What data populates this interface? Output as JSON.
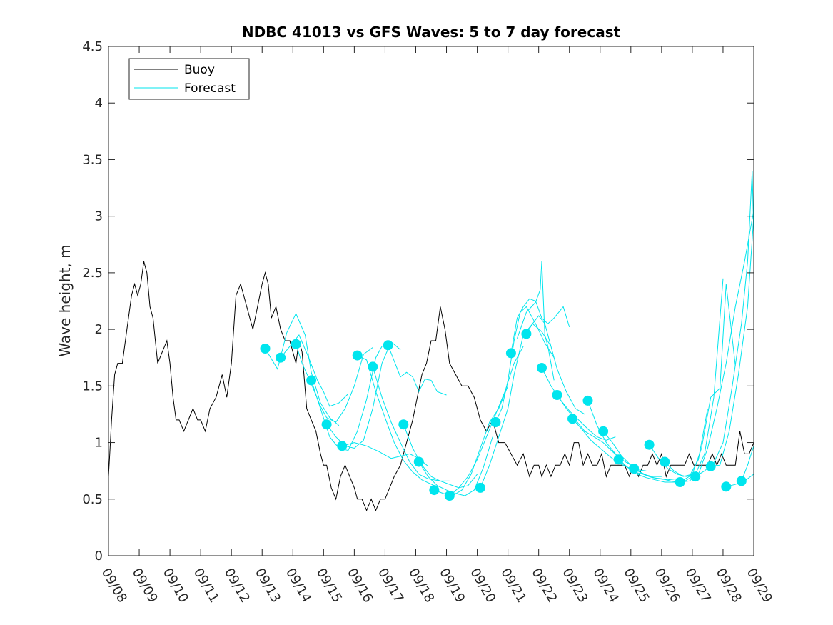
{
  "chart_data": {
    "type": "line",
    "title": "NDBC 41013 vs GFS Waves: 5 to 7 day forecast",
    "xlabel": "",
    "ylabel": "Wave height, m",
    "xlim": [
      0,
      21
    ],
    "ylim": [
      0,
      4.5
    ],
    "x_ticks": [
      "09/08",
      "09/09",
      "09/10",
      "09/11",
      "09/12",
      "09/13",
      "09/14",
      "09/15",
      "09/16",
      "09/17",
      "09/18",
      "09/19",
      "09/20",
      "09/21",
      "09/22",
      "09/23",
      "09/24",
      "09/25",
      "09/26",
      "09/27",
      "09/28",
      "09/29"
    ],
    "y_ticks": [
      0,
      0.5,
      1,
      1.5,
      2,
      2.5,
      3,
      3.5,
      4,
      4.5
    ],
    "y_tick_labels": [
      "0",
      "0.5",
      "1",
      "1.5",
      "2",
      "2.5",
      "3",
      "3.5",
      "4",
      "4.5"
    ],
    "legend": {
      "position": "top-left",
      "entries": [
        "Buoy",
        "Forecast"
      ]
    },
    "colors": {
      "buoy": "#000000",
      "forecast": "#00e5ee",
      "axes": "#262626"
    },
    "series": [
      {
        "name": "Buoy",
        "x": [
          0,
          0.05,
          0.1,
          0.2,
          0.3,
          0.45,
          0.6,
          0.75,
          0.85,
          0.95,
          1.05,
          1.15,
          1.25,
          1.35,
          1.45,
          1.6,
          1.75,
          1.9,
          2.0,
          2.1,
          2.2,
          2.3,
          2.45,
          2.6,
          2.75,
          2.9,
          3.0,
          3.15,
          3.3,
          3.5,
          3.7,
          3.85,
          4.0,
          4.15,
          4.3,
          4.5,
          4.7,
          4.85,
          5.0,
          5.1,
          5.2,
          5.3,
          5.45,
          5.6,
          5.75,
          5.9,
          6.0,
          6.1,
          6.2,
          6.3,
          6.45,
          6.6,
          6.75,
          6.9,
          7.0,
          7.1,
          7.25,
          7.4,
          7.55,
          7.7,
          7.85,
          8.0,
          8.1,
          8.25,
          8.4,
          8.55,
          8.7,
          8.85,
          9.0,
          9.15,
          9.3,
          9.5,
          9.7,
          9.9,
          10.05,
          10.2,
          10.35,
          10.5,
          10.65,
          10.8,
          10.95,
          11.1,
          11.3,
          11.5,
          11.7,
          11.9,
          12.1,
          12.3,
          12.5,
          12.7,
          12.9,
          13.1,
          13.3,
          13.5,
          13.7,
          13.85,
          14.0,
          14.1,
          14.25,
          14.4,
          14.55,
          14.7,
          14.85,
          15.0,
          15.15,
          15.3,
          15.45,
          15.6,
          15.75,
          15.9,
          16.05,
          16.2,
          16.35,
          16.5,
          16.65,
          16.8,
          16.95,
          17.1,
          17.25,
          17.4,
          17.55,
          17.7,
          17.85,
          18.0,
          18.15,
          18.3,
          18.45,
          18.6,
          18.75,
          18.9,
          19.05,
          19.2,
          19.35,
          19.5,
          19.65,
          19.8,
          19.95,
          20.1,
          20.25,
          20.4,
          20.55,
          20.7,
          20.85,
          21.0
        ],
        "y": [
          0.7,
          0.95,
          1.2,
          1.6,
          1.7,
          1.7,
          2.0,
          2.3,
          2.4,
          2.3,
          2.4,
          2.6,
          2.5,
          2.2,
          2.1,
          1.7,
          1.8,
          1.9,
          1.7,
          1.4,
          1.2,
          1.2,
          1.1,
          1.2,
          1.3,
          1.2,
          1.2,
          1.1,
          1.3,
          1.4,
          1.6,
          1.4,
          1.7,
          2.3,
          2.4,
          2.2,
          2.0,
          2.2,
          2.4,
          2.5,
          2.4,
          2.1,
          2.2,
          2.0,
          1.9,
          1.9,
          1.8,
          1.7,
          1.9,
          1.8,
          1.3,
          1.2,
          1.1,
          0.9,
          0.8,
          0.8,
          0.6,
          0.5,
          0.7,
          0.8,
          0.7,
          0.6,
          0.5,
          0.5,
          0.4,
          0.5,
          0.4,
          0.5,
          0.5,
          0.6,
          0.7,
          0.8,
          1.0,
          1.2,
          1.4,
          1.6,
          1.7,
          1.9,
          1.9,
          2.2,
          2.0,
          1.7,
          1.6,
          1.5,
          1.5,
          1.4,
          1.2,
          1.1,
          1.2,
          1.0,
          1.0,
          0.9,
          0.8,
          0.9,
          0.7,
          0.8,
          0.8,
          0.7,
          0.8,
          0.7,
          0.8,
          0.8,
          0.9,
          0.8,
          1.0,
          1.0,
          0.8,
          0.9,
          0.8,
          0.8,
          0.9,
          0.7,
          0.8,
          0.8,
          0.8,
          0.8,
          0.7,
          0.8,
          0.7,
          0.8,
          0.8,
          0.9,
          0.8,
          0.9,
          0.7,
          0.8,
          0.8,
          0.8,
          0.8,
          0.9,
          0.8,
          0.8,
          0.8,
          0.8,
          0.9,
          0.8,
          0.9,
          0.8,
          0.8,
          0.8,
          1.1,
          0.9,
          0.9,
          1.0
        ]
      }
    ],
    "forecast_segments": [
      {
        "x": [
          5.1,
          5.5,
          5.8,
          6.1,
          6.4,
          6.6,
          6.9,
          7.2,
          7.5
        ],
        "y": [
          1.83,
          1.65,
          1.97,
          2.14,
          1.95,
          1.62,
          1.35,
          1.22,
          1.15
        ]
      },
      {
        "x": [
          5.6,
          5.9,
          6.2,
          6.5,
          6.8,
          7.0,
          7.2,
          7.5,
          7.8
        ],
        "y": [
          1.75,
          1.85,
          1.95,
          1.76,
          1.55,
          1.45,
          1.32,
          1.35,
          1.43
        ]
      },
      {
        "x": [
          6.1,
          6.3,
          6.6,
          6.9,
          7.1,
          7.4,
          7.7,
          8.0,
          8.3,
          8.6
        ],
        "y": [
          1.87,
          1.7,
          1.52,
          1.32,
          1.22,
          1.18,
          1.3,
          1.5,
          1.78,
          1.84
        ]
      },
      {
        "x": [
          6.6,
          6.9,
          7.2,
          7.5,
          7.8,
          8.1,
          8.4,
          8.7,
          8.9
        ],
        "y": [
          1.55,
          1.3,
          1.05,
          0.95,
          0.93,
          1.1,
          1.38,
          1.75,
          1.85
        ]
      },
      {
        "x": [
          7.1,
          7.4,
          7.7,
          8.0,
          8.3,
          8.6,
          8.9,
          9.2,
          9.5
        ],
        "y": [
          1.16,
          1.05,
          0.97,
          0.95,
          1.02,
          1.3,
          1.7,
          1.89,
          1.82
        ]
      },
      {
        "x": [
          7.6,
          8.0,
          8.4,
          8.8,
          9.2,
          9.5,
          9.8,
          10.1,
          10.4
        ],
        "y": [
          0.97,
          1.0,
          0.97,
          0.92,
          0.86,
          0.88,
          0.9,
          0.86,
          0.79
        ]
      },
      {
        "x": [
          8.1,
          8.4,
          8.7,
          9.0,
          9.3,
          9.6,
          9.9,
          10.2,
          10.6
        ],
        "y": [
          1.77,
          1.73,
          1.45,
          1.22,
          1.0,
          0.84,
          0.74,
          0.67,
          0.62
        ]
      },
      {
        "x": [
          8.6,
          8.9,
          9.2,
          9.5,
          9.8,
          10.1,
          10.4,
          10.8,
          11.1
        ],
        "y": [
          1.67,
          1.4,
          1.18,
          1.0,
          0.83,
          0.72,
          0.68,
          0.66,
          0.66
        ]
      },
      {
        "x": [
          9.1,
          9.3,
          9.5,
          9.7,
          9.9,
          10.1,
          10.3,
          10.5,
          10.7,
          11.0
        ],
        "y": [
          1.86,
          1.72,
          1.58,
          1.62,
          1.58,
          1.45,
          1.56,
          1.55,
          1.45,
          1.42
        ]
      },
      {
        "x": [
          9.6,
          9.9,
          10.2,
          10.5,
          10.8,
          11.1,
          11.4,
          11.7,
          12.0
        ],
        "y": [
          1.16,
          0.95,
          0.8,
          0.7,
          0.66,
          0.63,
          0.6,
          0.62,
          0.72
        ]
      },
      {
        "x": [
          10.1,
          10.4,
          10.7,
          11.0,
          11.3,
          11.6,
          11.9,
          12.2,
          12.5
        ],
        "y": [
          0.83,
          0.7,
          0.62,
          0.58,
          0.55,
          0.53,
          0.58,
          0.78,
          1.05
        ]
      },
      {
        "x": [
          10.6,
          10.9,
          11.2,
          11.5,
          11.8,
          12.1,
          12.4,
          12.7,
          13.0
        ],
        "y": [
          0.58,
          0.55,
          0.53,
          0.58,
          0.72,
          0.95,
          1.18,
          1.3,
          1.5
        ]
      },
      {
        "x": [
          11.1,
          11.4,
          11.7,
          12.0,
          12.3,
          12.6,
          12.9,
          13.2,
          13.5
        ],
        "y": [
          0.53,
          0.6,
          0.7,
          0.85,
          1.05,
          1.25,
          1.45,
          1.7,
          1.85
        ]
      },
      {
        "x": [
          12.1,
          12.4,
          12.7,
          13.0,
          13.2,
          13.5,
          13.8,
          14.1,
          14.4
        ],
        "y": [
          0.6,
          0.8,
          1.05,
          1.3,
          1.6,
          1.95,
          2.05,
          1.98,
          1.85
        ]
      },
      {
        "x": [
          12.6,
          12.8,
          13.0,
          13.2,
          13.4,
          13.6,
          13.9,
          14.2,
          14.5
        ],
        "y": [
          1.18,
          1.3,
          1.55,
          1.9,
          2.15,
          2.2,
          2.05,
          1.88,
          1.75
        ]
      },
      {
        "x": [
          13.1,
          13.3,
          13.5,
          13.7,
          13.9,
          14.1,
          14.3,
          14.5,
          14.8,
          15.0
        ],
        "y": [
          1.79,
          2.1,
          2.2,
          2.27,
          2.25,
          2.1,
          2.05,
          2.1,
          2.2,
          2.02
        ]
      },
      {
        "x": [
          13.6,
          13.8,
          14.0,
          14.2,
          14.4,
          14.6,
          14.9,
          15.2,
          15.5
        ],
        "y": [
          1.96,
          2.05,
          2.12,
          2.05,
          1.85,
          1.65,
          1.45,
          1.3,
          1.25
        ]
      },
      {
        "x": [
          13.3,
          13.6,
          13.9,
          14.05,
          14.1,
          14.2,
          14.3,
          14.5
        ],
        "y": [
          1.92,
          2.15,
          2.24,
          2.35,
          2.6,
          1.95,
          1.85,
          1.55
        ]
      },
      {
        "x": [
          14.1,
          14.4,
          14.7,
          15.0,
          15.3,
          15.6,
          15.9,
          16.2,
          16.5
        ],
        "y": [
          1.66,
          1.5,
          1.38,
          1.28,
          1.2,
          1.12,
          1.05,
          1.02,
          1.05
        ]
      },
      {
        "x": [
          14.6,
          14.9,
          15.2,
          15.5,
          15.8,
          16.1,
          16.4,
          16.7,
          17.0
        ],
        "y": [
          1.42,
          1.3,
          1.2,
          1.1,
          1.05,
          1.0,
          0.92,
          0.85,
          0.8
        ]
      },
      {
        "x": [
          15.1,
          15.4,
          15.7,
          16.0,
          16.3,
          16.6,
          16.9,
          17.2,
          17.5
        ],
        "y": [
          1.21,
          1.12,
          1.02,
          0.95,
          0.88,
          0.82,
          0.78,
          0.76,
          0.75
        ]
      },
      {
        "x": [
          15.6,
          15.9,
          16.2,
          16.5,
          16.8,
          17.1,
          17.4,
          17.7,
          18.0
        ],
        "y": [
          1.37,
          1.15,
          1.0,
          0.9,
          0.8,
          0.74,
          0.72,
          0.7,
          0.7
        ]
      },
      {
        "x": [
          16.1,
          16.4,
          16.7,
          17.0,
          17.3,
          17.6,
          17.9,
          18.2,
          18.5
        ],
        "y": [
          1.1,
          1.0,
          0.88,
          0.8,
          0.74,
          0.7,
          0.68,
          0.67,
          0.68
        ]
      },
      {
        "x": [
          16.6,
          16.9,
          17.2,
          17.5,
          17.8,
          18.1,
          18.4,
          18.7,
          19.0
        ],
        "y": [
          0.85,
          0.78,
          0.72,
          0.69,
          0.67,
          0.65,
          0.65,
          0.65,
          0.7
        ]
      },
      {
        "x": [
          17.1,
          17.4,
          17.7,
          18.0,
          18.3,
          18.6,
          18.9,
          19.2,
          19.5
        ],
        "y": [
          0.77,
          0.72,
          0.69,
          0.68,
          0.66,
          0.65,
          0.7,
          0.85,
          1.3
        ]
      },
      {
        "x": [
          17.6,
          17.9,
          18.2,
          18.5,
          18.8,
          19.1,
          19.4,
          19.7,
          20.0
        ],
        "y": [
          0.98,
          0.86,
          0.77,
          0.72,
          0.7,
          0.72,
          0.9,
          1.4,
          2.45
        ]
      },
      {
        "x": [
          18.1,
          18.4,
          18.7,
          19.0,
          19.3,
          19.6,
          19.9,
          20.1,
          20.4
        ],
        "y": [
          0.83,
          0.75,
          0.7,
          0.72,
          0.95,
          1.4,
          1.48,
          2.4,
          1.68
        ]
      },
      {
        "x": [
          18.6,
          18.9,
          19.2,
          19.5,
          19.8,
          20.1,
          20.4,
          20.7,
          21.0
        ],
        "y": [
          0.65,
          0.66,
          0.72,
          0.95,
          1.3,
          1.7,
          2.2,
          2.6,
          3.05
        ]
      },
      {
        "x": [
          19.1,
          19.4,
          19.7,
          20.0,
          20.3,
          20.6,
          20.8,
          20.95,
          21.0
        ],
        "y": [
          0.7,
          0.75,
          0.82,
          1.0,
          1.5,
          2.05,
          2.6,
          3.4,
          2.85
        ]
      },
      {
        "x": [
          19.6,
          19.9,
          20.2,
          20.5,
          20.8,
          21.0
        ],
        "y": [
          0.79,
          0.8,
          1.1,
          1.6,
          2.2,
          3.0
        ]
      },
      {
        "x": [
          20.1,
          20.4,
          20.7,
          21.0
        ],
        "y": [
          0.61,
          0.63,
          0.66,
          0.72
        ]
      },
      {
        "x": [
          20.6,
          20.8,
          21.0
        ],
        "y": [
          0.66,
          0.8,
          0.97
        ]
      }
    ],
    "forecast_markers": {
      "x": [
        5.1,
        5.6,
        6.1,
        6.6,
        7.1,
        7.6,
        8.1,
        8.6,
        9.1,
        9.6,
        10.1,
        10.6,
        11.1,
        12.1,
        12.6,
        13.1,
        13.6,
        14.1,
        14.6,
        15.1,
        15.6,
        16.1,
        16.6,
        17.1,
        17.6,
        18.1,
        18.6,
        19.1,
        19.6,
        20.1,
        20.6
      ],
      "y": [
        1.83,
        1.75,
        1.87,
        1.55,
        1.16,
        0.97,
        1.77,
        1.67,
        1.86,
        1.16,
        0.83,
        0.58,
        0.53,
        0.6,
        1.18,
        1.79,
        1.96,
        1.66,
        1.42,
        1.21,
        1.37,
        1.1,
        0.85,
        0.77,
        0.98,
        0.83,
        0.65,
        0.7,
        0.79,
        0.61,
        0.66
      ]
    }
  }
}
